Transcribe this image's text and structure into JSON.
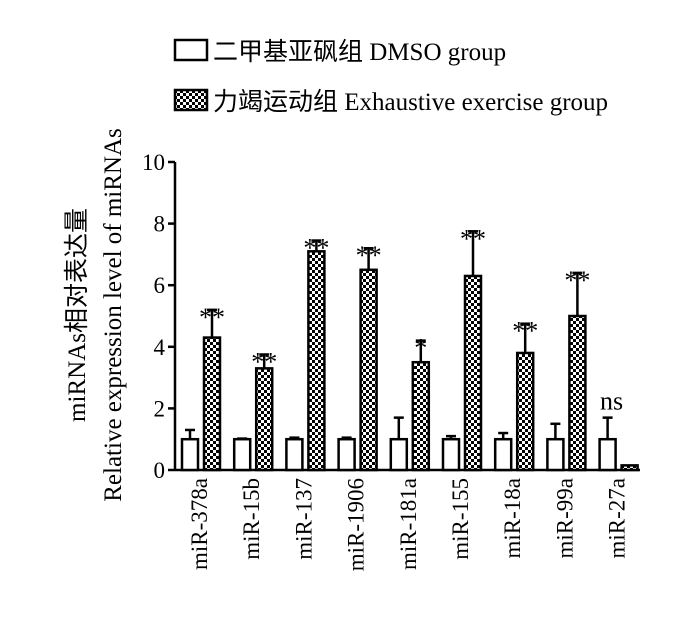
{
  "chart_data": {
    "type": "bar",
    "categories": [
      "miR-378a",
      "miR-15b",
      "miR-137",
      "miR-1906",
      "miR-181a",
      "miR-155",
      "miR-18a",
      "miR-99a",
      "miR-27a"
    ],
    "series": [
      {
        "name": "二甲基亚砜组 DMSO group",
        "values": [
          1.0,
          1.0,
          1.0,
          1.0,
          1.0,
          1.0,
          1.0,
          1.0,
          1.0
        ],
        "errors": [
          0.3,
          0.02,
          0.05,
          0.05,
          0.7,
          0.1,
          0.2,
          0.5,
          0.7
        ]
      },
      {
        "name": "力竭运动组 Exhaustive exercise group",
        "values": [
          4.3,
          3.3,
          7.1,
          6.5,
          3.5,
          6.3,
          3.8,
          5.0,
          0.15
        ],
        "errors": [
          0.9,
          0.45,
          0.35,
          0.7,
          0.7,
          1.45,
          0.95,
          1.4,
          0.0
        ]
      }
    ],
    "significance": [
      "**",
      "**",
      "**",
      "**",
      "*",
      "**",
      "**",
      "**",
      "ns"
    ],
    "ylabel_line1": "miRNAs相对表达量",
    "ylabel_line2": "Relative expression level of miRNAs",
    "ylim": [
      0,
      10
    ],
    "yticks": [
      "0",
      "2",
      "4",
      "6",
      "8",
      "10"
    ],
    "grid": false,
    "legend_position": "top"
  }
}
